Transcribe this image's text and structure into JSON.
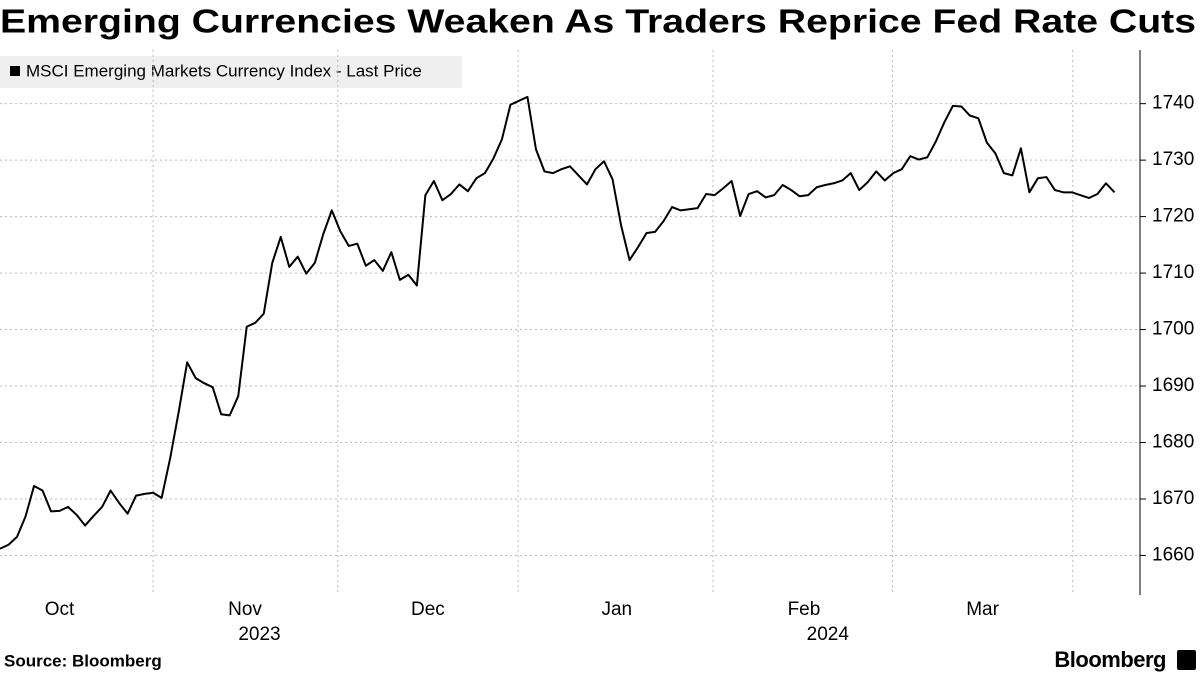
{
  "chart_data": {
    "type": "line",
    "title": "Emerging Currencies Weaken As Traders Reprice Fed Rate Cuts",
    "series": [
      {
        "name": "MSCI Emerging Markets Currency Index - Last Price",
        "color": "#000000",
        "values": [
          1661.2,
          1661.9,
          1663.3,
          1666.9,
          1672.3,
          1671.5,
          1667.8,
          1667.9,
          1668.6,
          1667.2,
          1665.3,
          1667.0,
          1668.6,
          1671.5,
          1669.3,
          1667.4,
          1670.6,
          1670.9,
          1671.1,
          1670.2,
          1677.2,
          1685.4,
          1694.2,
          1691.4,
          1690.5,
          1689.8,
          1685.0,
          1684.8,
          1688.2,
          1700.5,
          1701.2,
          1702.8,
          1711.8,
          1716.4,
          1711.1,
          1712.9,
          1709.9,
          1711.8,
          1716.9,
          1721.1,
          1717.4,
          1714.8,
          1715.2,
          1711.3,
          1712.3,
          1710.4,
          1713.7,
          1708.8,
          1709.7,
          1707.8,
          1723.8,
          1726.3,
          1722.9,
          1724.0,
          1725.7,
          1724.5,
          1726.8,
          1727.7,
          1730.3,
          1733.7,
          1739.8,
          1740.5,
          1741.2,
          1731.9,
          1728.0,
          1727.7,
          1728.4,
          1728.9,
          1727.3,
          1725.7,
          1728.4,
          1729.8,
          1726.6,
          1718.5,
          1712.3,
          1714.6,
          1717.1,
          1717.3,
          1719.2,
          1721.7,
          1721.1,
          1721.3,
          1721.5,
          1724.0,
          1723.8,
          1725.0,
          1726.3,
          1720.1,
          1724.0,
          1724.5,
          1723.4,
          1723.8,
          1725.6,
          1724.7,
          1723.6,
          1723.8,
          1725.2,
          1725.6,
          1725.9,
          1726.4,
          1727.7,
          1724.7,
          1726.1,
          1728.0,
          1726.4,
          1727.7,
          1728.4,
          1730.7,
          1730.1,
          1730.5,
          1733.3,
          1736.7,
          1739.6,
          1739.5,
          1737.9,
          1737.4,
          1733.1,
          1731.2,
          1727.7,
          1727.3,
          1732.1,
          1724.3,
          1726.8,
          1727.0,
          1724.7,
          1724.3,
          1724.3,
          1723.8,
          1723.3,
          1724.0,
          1725.9,
          1724.3
        ]
      }
    ],
    "xlim": [
      0,
      134
    ],
    "xticks": [
      {
        "value": 7,
        "label": "Oct"
      },
      {
        "value": 28.8,
        "label": "Nov"
      },
      {
        "value": 50.3,
        "label": "Dec"
      },
      {
        "value": 72.5,
        "label": "Jan"
      },
      {
        "value": 94.5,
        "label": "Feb"
      },
      {
        "value": 115.5,
        "label": "Mar"
      }
    ],
    "xgrid": [
      18,
      39.7,
      60.9,
      83.8,
      104.9,
      126.1
    ],
    "year_labels": [
      {
        "value": 30.5,
        "label": "2023"
      },
      {
        "value": 97.3,
        "label": "2024"
      }
    ],
    "ylim": [
      1653,
      1749.5
    ],
    "yticks": [
      1660,
      1670,
      1680,
      1690,
      1700,
      1710,
      1720,
      1730,
      1740
    ],
    "grid": true,
    "source": "Source: Bloomberg",
    "brand": "Bloomberg"
  }
}
